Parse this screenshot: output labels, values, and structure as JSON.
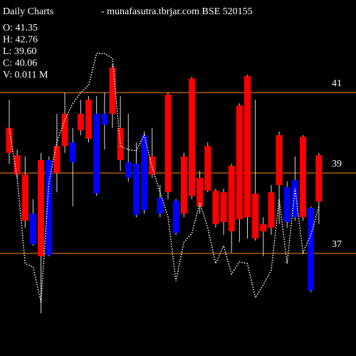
{
  "chart_data": {
    "type": "candlestick",
    "title": "Daily Charts",
    "subtitle": "-  munafasutra.tbrjar.com  BSE 520155",
    "info": [
      "O: 41.35",
      "H: 42.76",
      "L: 39.60",
      "C: 40.06",
      "V: 0.011 M"
    ],
    "open": [
      40.12,
      39.44,
      38.96,
      37.23,
      39.32,
      36.96,
      39.67,
      40.47,
      39.27,
      40.47,
      40.82,
      38.49,
      40.2,
      41.62,
      40.12,
      38.88,
      37.96,
      38.08,
      39.41,
      37.99,
      40.95,
      37.51,
      39.41,
      41.35,
      38.88,
      39.67,
      38.56,
      38.52,
      39.18,
      40.68,
      41.41,
      38.49,
      37.73,
      38.52,
      39.94,
      37.78,
      37.9,
      39.9,
      36.08,
      39.44
    ],
    "high": [
      40.82,
      39.58,
      39.41,
      38.35,
      39.5,
      39.41,
      40.47,
      41.0,
      40.12,
      40.82,
      40.91,
      40.91,
      41.0,
      41.71,
      40.91,
      40.47,
      39.76,
      40.03,
      40.12,
      38.7,
      41.0,
      38.35,
      39.5,
      41.39,
      39.05,
      39.76,
      38.61,
      38.61,
      39.23,
      40.73,
      41.44,
      40.82,
      37.9,
      38.7,
      40.03,
      38.79,
      39.41,
      39.94,
      38.17,
      39.5
    ],
    "low": [
      39.23,
      38.88,
      37.64,
      37.19,
      35.51,
      36.93,
      38.52,
      39.5,
      38.17,
      39.94,
      39.76,
      38.43,
      39.58,
      40.12,
      39.05,
      38.79,
      37.9,
      37.99,
      38.88,
      37.9,
      38.35,
      37.46,
      37.9,
      38.35,
      37.99,
      38.52,
      37.64,
      37.46,
      37.02,
      37.28,
      37.37,
      37.32,
      36.93,
      37.46,
      37.73,
      37.64,
      37.81,
      37.81,
      36.04,
      37.73
    ],
    "close": [
      39.5,
      38.96,
      37.81,
      37.99,
      36.93,
      39.32,
      39.0,
      39.67,
      39.76,
      40.06,
      39.85,
      40.47,
      40.47,
      40.47,
      39.32,
      39.27,
      39.23,
      39.94,
      38.96,
      38.38,
      38.52,
      38.31,
      37.99,
      38.43,
      38.17,
      38.56,
      37.73,
      37.78,
      37.55,
      37.85,
      37.9,
      37.37,
      37.55,
      37.64,
      38.7,
      38.65,
      38.82,
      37.9,
      38.13,
      38.29
    ],
    "line": [
      40.1,
      38.88,
      36.75,
      36.66,
      35.78,
      38.79,
      39.76,
      40.33,
      40.73,
      41.0,
      41.18,
      41.97,
      41.97,
      41.85,
      39.67,
      39.58,
      39.55,
      39.94,
      39.14,
      38.52,
      37.9,
      36.31,
      37.28,
      37.5,
      38.26,
      37.64,
      36.75,
      37.19,
      36.49,
      36.79,
      36.75,
      35.9,
      36.22,
      36.58,
      38.35,
      36.75,
      38.61,
      37.02,
      37.46,
      38.17
    ],
    "up_color": "#0000ff",
    "down_color": "#ff0000",
    "line_color": "#ffffff",
    "grid_color": "#ff8c00",
    "ylim": [
      34.45,
      43.3
    ],
    "yticks": [
      37,
      39,
      41
    ],
    "grid": true
  }
}
